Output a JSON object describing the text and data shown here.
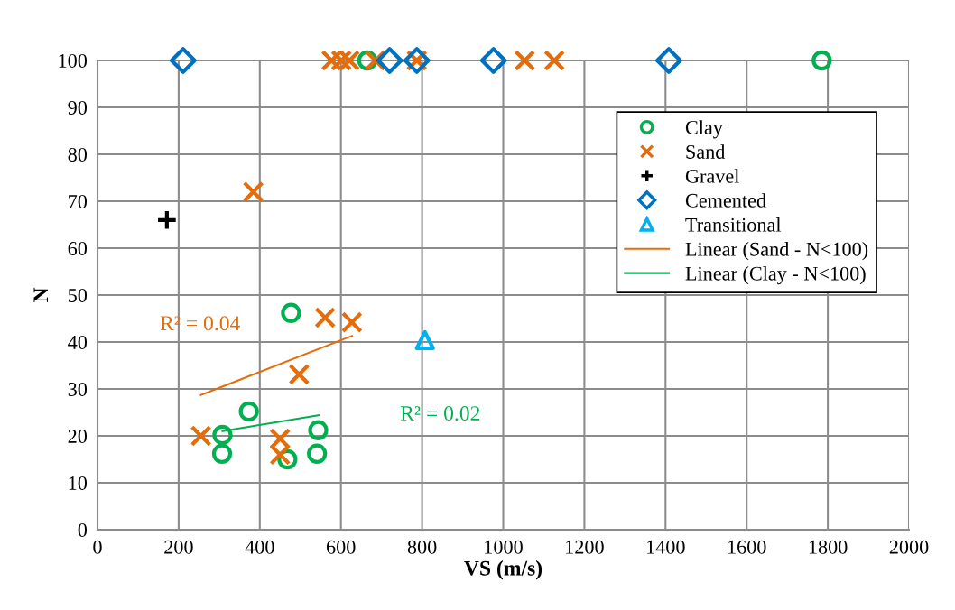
{
  "chart_data": {
    "type": "scatter",
    "xlabel": "VS (m/s)",
    "ylabel": "N",
    "xlim": [
      0,
      2000
    ],
    "xticks": [
      0,
      200,
      400,
      600,
      800,
      1000,
      1200,
      1400,
      1600,
      1800,
      2000
    ],
    "ylim": [
      0,
      100
    ],
    "yticks": [
      0,
      10,
      20,
      30,
      40,
      50,
      60,
      70,
      80,
      90,
      100
    ],
    "grid": true,
    "legend": "top right",
    "series": [
      {
        "name": "Clay",
        "color": "#00b050",
        "marker": "circle",
        "x": [
          665,
          1785,
          477,
          373,
          308,
          307,
          468,
          544,
          541
        ],
        "values": [
          100,
          100,
          46.2,
          25.2,
          20.2,
          16.2,
          15,
          21.2,
          16.2
        ]
      },
      {
        "name": "Sand",
        "color": "#e46c0a",
        "marker": "cross",
        "x": [
          577,
          601,
          621,
          685,
          787,
          1053,
          1126,
          384,
          561,
          627,
          497,
          255,
          450,
          450
        ],
        "values": [
          100,
          100,
          100,
          100,
          100,
          100,
          100,
          72,
          45.2,
          44.2,
          33.1,
          20,
          19.4,
          16
        ]
      },
      {
        "name": "Gravel",
        "color": "#000000",
        "marker": "plus",
        "x": [
          171
        ],
        "values": [
          66
        ]
      },
      {
        "name": "Cemented",
        "color": "#0070c0",
        "marker": "diamond",
        "x": [
          211,
          720,
          787,
          976,
          1408
        ],
        "values": [
          100,
          100,
          100,
          100,
          100
        ]
      },
      {
        "name": "Transitional",
        "color": "#00b0f0",
        "marker": "triangle",
        "x": [
          807
        ],
        "values": [
          40.4
        ]
      },
      {
        "name": "Linear (Sand - N<100)",
        "type": "line",
        "color": "#e46c0a",
        "marker": "none",
        "x": [
          255,
          627
        ],
        "values": [
          28.7,
          41.3
        ]
      },
      {
        "name": "Linear (Clay - N<100)",
        "type": "line",
        "color": "#00b050",
        "marker": "none",
        "x": [
          308,
          545
        ],
        "values": [
          21.0,
          24.4
        ]
      }
    ],
    "annotations": [
      "R² = 0.04",
      "R² = 0.02"
    ]
  }
}
